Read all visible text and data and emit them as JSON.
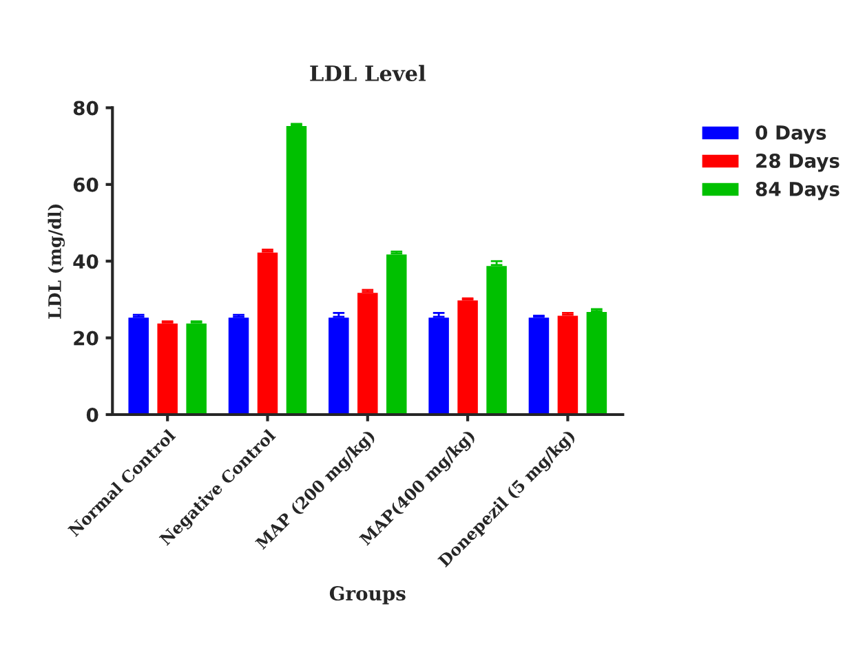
{
  "chart_data": {
    "type": "bar",
    "title": "LDL Level",
    "xlabel": "Groups",
    "ylabel": "LDL (mg/dl)",
    "categories": [
      "Normal Control",
      "Negative Control",
      "MAP (200 mg/kg)",
      "MAP(400 mg/kg)",
      "Donepezil (5 mg/kg)"
    ],
    "series": [
      {
        "name": "0 Days",
        "color": "#0000ff",
        "values": [
          25.5,
          25.5,
          25.5,
          25.5,
          25.5
        ],
        "errors": [
          0.5,
          0.5,
          1,
          1,
          0.3
        ]
      },
      {
        "name": "28 Days",
        "color": "#ff0000",
        "values": [
          24,
          42.5,
          32,
          30,
          26
        ],
        "errors": [
          0.3,
          0.5,
          0.5,
          0.3,
          0.5
        ]
      },
      {
        "name": "84 Days",
        "color": "#00c000",
        "values": [
          24,
          75.5,
          42,
          39,
          27
        ],
        "errors": [
          0.3,
          0.3,
          0.5,
          1,
          0.5
        ]
      }
    ],
    "ylim": [
      0,
      80
    ],
    "yticks": [
      0,
      20,
      40,
      60,
      80
    ],
    "grid": false,
    "legend": "top right"
  }
}
